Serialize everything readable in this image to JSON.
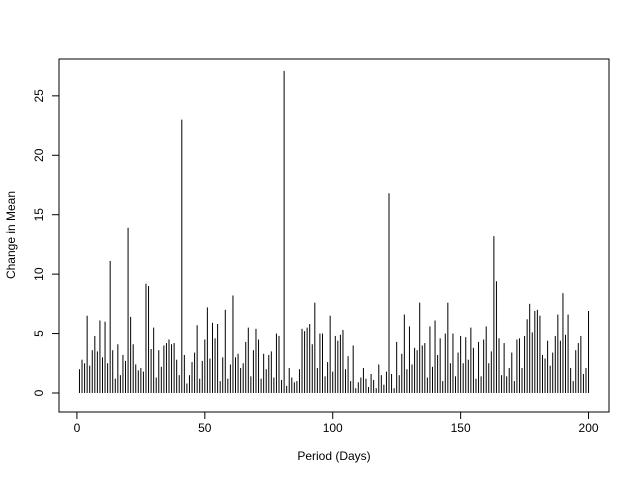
{
  "chart_data": {
    "type": "spike",
    "xlabel": "Period (Days)",
    "ylabel": "Change in Mean",
    "color": "#000000",
    "x": [
      1,
      2,
      3,
      4,
      5,
      6,
      7,
      8,
      9,
      10,
      11,
      12,
      13,
      14,
      15,
      16,
      17,
      18,
      19,
      20,
      21,
      22,
      23,
      24,
      25,
      26,
      27,
      28,
      29,
      30,
      31,
      32,
      33,
      34,
      35,
      36,
      37,
      38,
      39,
      40,
      41,
      42,
      43,
      44,
      45,
      46,
      47,
      48,
      49,
      50,
      51,
      52,
      53,
      54,
      55,
      56,
      57,
      58,
      59,
      60,
      61,
      62,
      63,
      64,
      65,
      66,
      67,
      68,
      69,
      70,
      71,
      72,
      73,
      74,
      75,
      76,
      77,
      78,
      79,
      80,
      81,
      82,
      83,
      84,
      85,
      86,
      87,
      88,
      89,
      90,
      91,
      92,
      93,
      94,
      95,
      96,
      97,
      98,
      99,
      100,
      101,
      102,
      103,
      104,
      105,
      106,
      107,
      108,
      109,
      110,
      111,
      112,
      113,
      114,
      115,
      116,
      117,
      118,
      119,
      120,
      121,
      122,
      123,
      124,
      125,
      126,
      127,
      128,
      129,
      130,
      131,
      132,
      133,
      134,
      135,
      136,
      137,
      138,
      139,
      140,
      141,
      142,
      143,
      144,
      145,
      146,
      147,
      148,
      149,
      150,
      151,
      152,
      153,
      154,
      155,
      156,
      157,
      158,
      159,
      160,
      161,
      162,
      163,
      164,
      165,
      166,
      167,
      168,
      169,
      170,
      171,
      172,
      173,
      174,
      175,
      176,
      177,
      178,
      179,
      180,
      181,
      182,
      183,
      184,
      185,
      186,
      187,
      188,
      189,
      190,
      191,
      192,
      193,
      194,
      195,
      196,
      197,
      198,
      199,
      200
    ],
    "values": [
      2.0,
      2.8,
      2.5,
      6.5,
      2.3,
      3.6,
      4.8,
      3.5,
      6.1,
      3.0,
      6.0,
      2.5,
      11.1,
      3.6,
      1.2,
      4.1,
      1.5,
      3.2,
      2.7,
      13.9,
      6.4,
      4.1,
      2.4,
      1.9,
      2.1,
      1.8,
      9.2,
      9.0,
      3.7,
      5.5,
      1.3,
      3.6,
      2.2,
      4.0,
      4.2,
      4.5,
      4.1,
      4.2,
      2.8,
      1.5,
      23.0,
      3.2,
      0.8,
      1.5,
      2.6,
      3.4,
      5.7,
      1.2,
      2.7,
      4.5,
      7.2,
      2.9,
      5.9,
      4.6,
      5.8,
      1.0,
      3.0,
      7.0,
      1.2,
      2.4,
      8.2,
      3.0,
      3.3,
      2.1,
      2.5,
      4.3,
      5.5,
      1.4,
      3.6,
      5.4,
      4.5,
      1.2,
      3.3,
      2.0,
      3.2,
      3.5,
      1.3,
      5.0,
      4.8,
      1.1,
      27.1,
      0.6,
      2.1,
      1.3,
      0.9,
      1.0,
      2.0,
      5.4,
      5.2,
      5.5,
      5.8,
      4.1,
      7.6,
      2.1,
      5.0,
      5.0,
      1.4,
      2.6,
      6.5,
      1.8,
      4.8,
      4.4,
      4.9,
      5.3,
      2.0,
      3.1,
      1.0,
      4.0,
      0.4,
      0.9,
      1.3,
      2.1,
      1.2,
      0.5,
      1.6,
      1.1,
      0.4,
      2.4,
      1.5,
      0.7,
      1.8,
      16.8,
      1.6,
      0.4,
      4.3,
      1.5,
      3.3,
      6.6,
      2.0,
      5.6,
      2.4,
      3.8,
      3.6,
      7.6,
      4.0,
      4.2,
      1.3,
      5.6,
      2.2,
      6.1,
      3.2,
      4.6,
      1.0,
      5.0,
      7.6,
      2.5,
      5.0,
      1.4,
      3.4,
      4.8,
      2.5,
      4.7,
      2.8,
      5.5,
      3.8,
      1.2,
      4.3,
      1.4,
      4.5,
      5.6,
      2.5,
      3.5,
      13.2,
      9.4,
      4.6,
      1.5,
      4.2,
      1.4,
      2.1,
      3.4,
      1.0,
      4.5,
      4.6,
      2.1,
      4.8,
      6.2,
      7.5,
      5.1,
      6.9,
      7.0,
      6.5,
      3.2,
      2.9,
      4.4,
      2.3,
      3.4,
      4.8,
      6.6,
      4.4,
      8.4,
      4.9,
      6.6,
      2.1,
      1.0,
      3.6,
      4.2,
      4.8,
      1.6,
      2.1,
      6.9
    ],
    "xlim": [
      -7,
      208
    ],
    "ylim": [
      -1.6,
      28.1
    ],
    "xticks": [
      0,
      50,
      100,
      150,
      200
    ],
    "yticks": [
      0,
      5,
      10,
      15,
      20,
      25
    ]
  }
}
